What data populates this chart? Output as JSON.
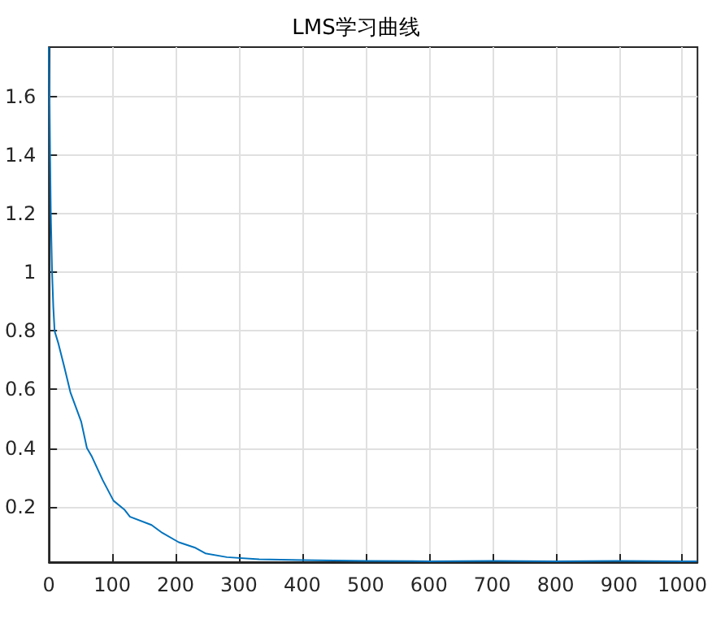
{
  "chart_data": {
    "type": "line",
    "title": "LMS学习曲线",
    "x": [
      0,
      1,
      2,
      3,
      5,
      7,
      9,
      15,
      24,
      34,
      51,
      60,
      68,
      85,
      102,
      119,
      128,
      162,
      179,
      205,
      230,
      247,
      281,
      332,
      400,
      500,
      600,
      700,
      800,
      900,
      1000,
      1023
    ],
    "series": [
      {
        "color": "#0072bd",
        "values": [
          1.77,
          1.6,
          1.38,
          1.2,
          1.0,
          0.88,
          0.8,
          0.757,
          0.68,
          0.59,
          0.49,
          0.4,
          0.37,
          0.29,
          0.22,
          0.19,
          0.165,
          0.137,
          0.11,
          0.078,
          0.06,
          0.04,
          0.027,
          0.02,
          0.017,
          0.014,
          0.013,
          0.014,
          0.013,
          0.014,
          0.013,
          0.013
        ]
      }
    ],
    "xlim": [
      0,
      1024
    ],
    "xticks": [
      0,
      100,
      200,
      300,
      400,
      500,
      600,
      700,
      800,
      900,
      1000
    ],
    "ylim": [
      0.01,
      1.77
    ],
    "yticks": [
      0.2,
      0.4,
      0.6,
      0.8,
      1,
      1.2,
      1.4,
      1.6
    ],
    "grid": true,
    "marker": "none",
    "line_style": "solid"
  }
}
